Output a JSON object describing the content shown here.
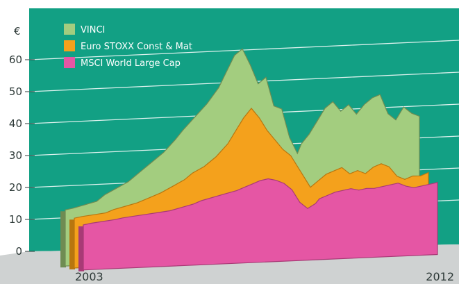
{
  "colors": {
    "panel": "#12a084",
    "floor": "#cfd2d2",
    "vinci": "#a3cd7f",
    "vinci_edge": "#6f8c52",
    "stoxx": "#f4a11c",
    "stoxx_edge": "#b8760f",
    "msci": "#e556a4",
    "msci_edge": "#a83a76",
    "tick_text": "#2e3a38",
    "legend_text": "#ffffff"
  },
  "chart_data": {
    "type": "area",
    "unit": "€",
    "x_range": [
      2003,
      2012
    ],
    "ylim": [
      0,
      65
    ],
    "yticks": [
      0,
      10,
      20,
      30,
      40,
      50,
      60
    ],
    "xtick_labels": [
      {
        "value": 2003,
        "label": "2003"
      },
      {
        "value": 2012,
        "label": "2012"
      }
    ],
    "grid": true,
    "legend_position": "top-left",
    "series": [
      {
        "name": "VINCI",
        "color_key": "vinci",
        "x": [
          2003.0,
          2003.2,
          2003.5,
          2003.8,
          2004.0,
          2004.3,
          2004.6,
          2004.9,
          2005.2,
          2005.5,
          2005.8,
          2006.0,
          2006.3,
          2006.6,
          2006.9,
          2007.1,
          2007.3,
          2007.5,
          2007.7,
          2007.9,
          2008.1,
          2008.3,
          2008.5,
          2008.7,
          2008.9,
          2009.0,
          2009.2,
          2009.4,
          2009.6,
          2009.8,
          2010.0,
          2010.2,
          2010.4,
          2010.6,
          2010.8,
          2011.0,
          2011.2,
          2011.4,
          2011.6,
          2011.8,
          2012.0
        ],
        "values": [
          11.5,
          12,
          13,
          14,
          16,
          18,
          20,
          23,
          26,
          29,
          33,
          36,
          40,
          44,
          49,
          54,
          59,
          61,
          56,
          50,
          52,
          43,
          42,
          33,
          28,
          31,
          34,
          38,
          42,
          44,
          41,
          43,
          40,
          43,
          45,
          46,
          40,
          38,
          42,
          40,
          39
        ]
      },
      {
        "name": "Euro STOXX Const & Mat",
        "color_key": "stoxx",
        "x": [
          2003.0,
          2003.2,
          2003.5,
          2003.8,
          2004.0,
          2004.3,
          2004.6,
          2004.9,
          2005.2,
          2005.5,
          2005.8,
          2006.0,
          2006.3,
          2006.6,
          2006.9,
          2007.1,
          2007.3,
          2007.5,
          2007.7,
          2007.9,
          2008.1,
          2008.3,
          2008.5,
          2008.7,
          2008.9,
          2009.0,
          2009.2,
          2009.4,
          2009.6,
          2009.8,
          2010.0,
          2010.2,
          2010.4,
          2010.6,
          2010.8,
          2011.0,
          2011.2,
          2011.4,
          2011.6,
          2011.8,
          2012.0
        ],
        "values": [
          9.5,
          10,
          10.5,
          11,
          12,
          13,
          14,
          15.5,
          17,
          19,
          21,
          23,
          25,
          28,
          32,
          36,
          40,
          43,
          40,
          36,
          33,
          30,
          28,
          24,
          20,
          18,
          20,
          22,
          23,
          24,
          22,
          23,
          22,
          24,
          25,
          24,
          21,
          20,
          21,
          21,
          22
        ]
      },
      {
        "name": "MSCI World Large Cap",
        "color_key": "msci",
        "x": [
          2003.0,
          2003.2,
          2003.5,
          2003.8,
          2004.0,
          2004.3,
          2004.6,
          2004.9,
          2005.2,
          2005.5,
          2005.8,
          2006.0,
          2006.3,
          2006.6,
          2006.9,
          2007.1,
          2007.3,
          2007.5,
          2007.7,
          2007.9,
          2008.1,
          2008.3,
          2008.5,
          2008.7,
          2008.9,
          2009.0,
          2009.2,
          2009.4,
          2009.6,
          2009.8,
          2010.0,
          2010.2,
          2010.4,
          2010.6,
          2010.8,
          2011.0,
          2011.2,
          2011.4,
          2011.6,
          2011.8,
          2012.0
        ],
        "values": [
          8,
          8.5,
          9,
          9.5,
          10,
          10.5,
          11,
          11.5,
          12,
          13,
          14,
          15,
          16,
          17,
          18,
          19,
          20,
          21,
          21.5,
          21,
          20,
          18,
          14,
          12,
          13.5,
          15,
          16,
          17,
          17.5,
          18,
          17.5,
          18,
          18,
          18.5,
          19,
          19.5,
          18.5,
          18,
          18.5,
          19,
          19.5
        ]
      }
    ]
  }
}
